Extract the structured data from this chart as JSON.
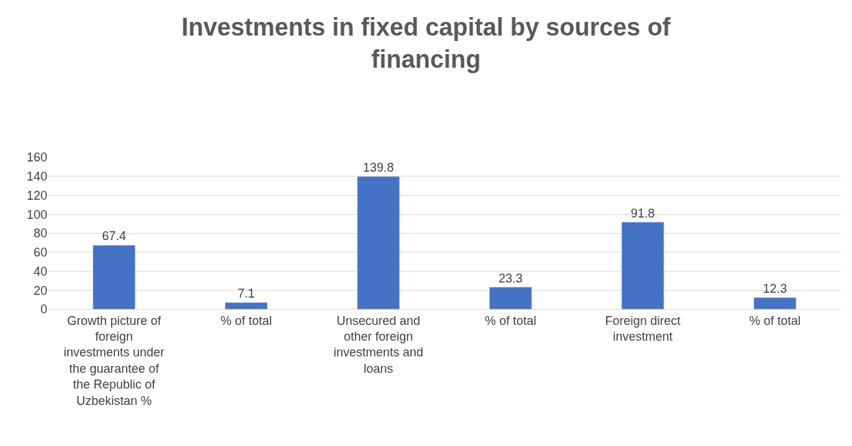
{
  "chart_data": {
    "type": "bar",
    "title": "Investments in fixed capital by sources of financing",
    "categories": [
      "Growth picture of foreign investments under the guarantee of the Republic of Uzbekistan %",
      "% of total",
      "Unsecured and other foreign investments and loans",
      "% of total",
      "Foreign direct investment",
      "% of total"
    ],
    "values": [
      67.4,
      7.1,
      139.8,
      23.3,
      91.8,
      12.3
    ],
    "color": "#4472c4",
    "ylim": [
      0,
      160
    ],
    "yticks": [
      0,
      20,
      40,
      60,
      80,
      100,
      120,
      140,
      160
    ],
    "grid": "y",
    "legend": false,
    "data_labels": true
  }
}
